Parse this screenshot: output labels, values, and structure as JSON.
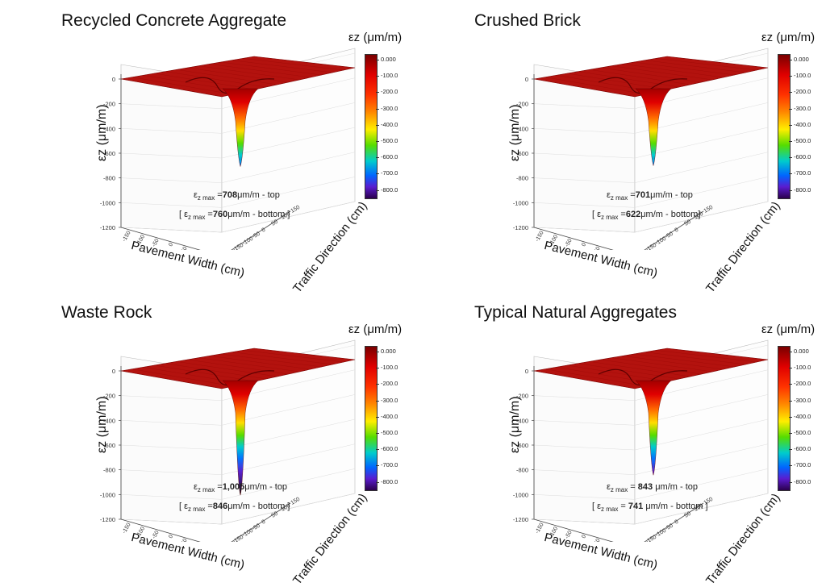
{
  "colorbar": {
    "title": "εz (μm/m)",
    "ticks": [
      "0.000",
      "-100.0",
      "-200.0",
      "-300.0",
      "-400.0",
      "-500.0",
      "-600.0",
      "-700.0",
      "-800.0"
    ]
  },
  "chart_data": [
    {
      "type": "surface3d",
      "title": "Recycled Concrete Aggregate",
      "xlabel": "Pavement Width (cm)",
      "ylabel": "Traffic Direction (cm)",
      "zlabel": "εz (μm/m)",
      "zlim": [
        -1200,
        0
      ],
      "z_ticks": [
        "0",
        "-200",
        "-400",
        "-600",
        "-800",
        "-1000",
        "-1200"
      ],
      "x_ticks": [
        "-150",
        "-100",
        "-50",
        "0",
        "50",
        "100",
        "150"
      ],
      "y_ticks": [
        "150",
        "100",
        "50",
        "0",
        "-50",
        "-100",
        "-150"
      ],
      "peak_strain": 708,
      "bottom_strain": 760,
      "line1": {
        "pre": "ε",
        "sub": "z max",
        "eq": " =",
        "val": "708",
        "post": "μm/m - top"
      },
      "line2": {
        "pre": "[ ε",
        "sub": "z max",
        "eq": " =",
        "val": "760",
        "post": "μm/m - bottom ]"
      }
    },
    {
      "type": "surface3d",
      "title": "Crushed Brick",
      "xlabel": "Pavement Width (cm)",
      "ylabel": "Traffic Direction (cm)",
      "zlabel": "εz (μm/m)",
      "zlim": [
        -1200,
        0
      ],
      "z_ticks": [
        "0",
        "-200",
        "-400",
        "-600",
        "-800",
        "-1000",
        "-1200"
      ],
      "x_ticks": [
        "-150",
        "-100",
        "-50",
        "0",
        "50",
        "100",
        "150"
      ],
      "y_ticks": [
        "150",
        "100",
        "50",
        "0",
        "-50",
        "-100",
        "-150"
      ],
      "peak_strain": 701,
      "bottom_strain": 622,
      "line1": {
        "pre": "ε",
        "sub": "z max",
        "eq": " =",
        "val": "701",
        "post": "μm/m - top"
      },
      "line2": {
        "pre": "[ ε",
        "sub": "z max",
        "eq": " =",
        "val": "622",
        "post": "μm/m - bottom]"
      }
    },
    {
      "type": "surface3d",
      "title": "Waste Rock",
      "xlabel": "Pavement Width (cm)",
      "ylabel": "Traffic Direction (cm)",
      "zlabel": "εz (μm/m)",
      "zlim": [
        -1200,
        0
      ],
      "z_ticks": [
        "0",
        "-200",
        "-400",
        "-600",
        "-800",
        "-1000",
        "-1200"
      ],
      "x_ticks": [
        "-150",
        "-100",
        "-50",
        "0",
        "50",
        "100",
        "150"
      ],
      "y_ticks": [
        "150",
        "100",
        "50",
        "0",
        "-50",
        "-100",
        "-150"
      ],
      "peak_strain": 1005,
      "bottom_strain": 846,
      "line1": {
        "pre": "ε",
        "sub": "z max",
        "eq": " =",
        "val": "1,005",
        "post": "μm/m - top"
      },
      "line2": {
        "pre": "[ ε",
        "sub": "z max",
        "eq": " =",
        "val": "846",
        "post": "μm/m - bottom ]"
      }
    },
    {
      "type": "surface3d",
      "title": "Typical Natural Aggregates",
      "xlabel": "Pavement Width (cm)",
      "ylabel": "Traffic Direction (cm)",
      "zlabel": "εz (μm/m)",
      "zlim": [
        -1200,
        0
      ],
      "z_ticks": [
        "0",
        "-200",
        "-400",
        "-600",
        "-800",
        "-1000",
        "-1200"
      ],
      "x_ticks": [
        "-150",
        "-100",
        "-50",
        "0",
        "50",
        "100",
        "150"
      ],
      "y_ticks": [
        "150",
        "100",
        "50",
        "0",
        "-50",
        "-100",
        "-150"
      ],
      "peak_strain": 843,
      "bottom_strain": 741,
      "line1": {
        "pre": "ε",
        "sub": "z max",
        "eq": " = ",
        "val": "843",
        "post": " μm/m - top"
      },
      "line2": {
        "pre": "[ ε",
        "sub": "z max",
        "eq": " = ",
        "val": "741",
        "post": " μm/m - bottom ]"
      }
    }
  ]
}
